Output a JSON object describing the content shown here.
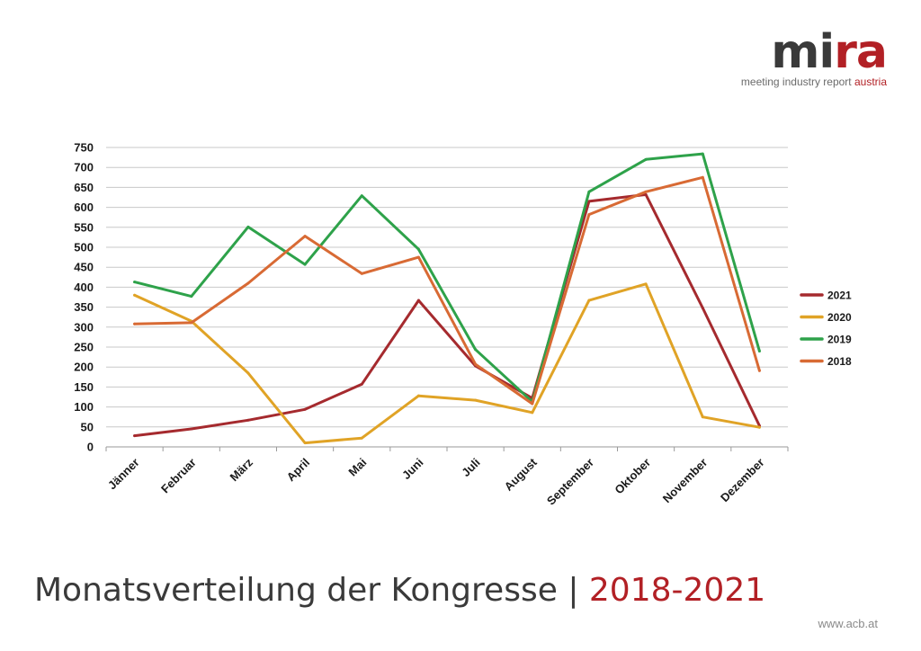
{
  "logo": {
    "mark_part1": "mi",
    "mark_part2": "ra",
    "tagline_part1": "meeting industry report ",
    "tagline_part2": "austria",
    "accent_color": "#b22025",
    "text_color": "#3a3a3a"
  },
  "footer": {
    "url": "www.acb.at"
  },
  "chart_data": {
    "type": "line",
    "title_main": "Monatsverteilung der Kongresse",
    "title_separator": "|",
    "title_years": "2018-2021",
    "categories": [
      "Jänner",
      "Februar",
      "März",
      "April",
      "Mai",
      "Juni",
      "Juli",
      "August",
      "September",
      "Oktober",
      "November",
      "Dezember"
    ],
    "ylim": [
      0,
      750
    ],
    "yticks": [
      0,
      50,
      100,
      150,
      200,
      250,
      300,
      350,
      400,
      450,
      500,
      550,
      600,
      650,
      700,
      750
    ],
    "grid": true,
    "legend_position": "right",
    "series": [
      {
        "name": "2021",
        "color": "#a52a2e",
        "values": [
          28,
          45,
          67,
          94,
          157,
          367,
          203,
          122,
          615,
          632,
          348,
          53
        ]
      },
      {
        "name": "2020",
        "color": "#e0a326",
        "values": [
          380,
          315,
          185,
          10,
          22,
          128,
          117,
          86,
          367,
          408,
          75,
          49
        ]
      },
      {
        "name": "2019",
        "color": "#2ea24a",
        "values": [
          413,
          377,
          551,
          457,
          629,
          495,
          244,
          113,
          639,
          720,
          734,
          240
        ]
      },
      {
        "name": "2018",
        "color": "#d86a34",
        "values": [
          308,
          311,
          410,
          528,
          434,
          475,
          207,
          108,
          582,
          639,
          675,
          191
        ]
      }
    ]
  }
}
